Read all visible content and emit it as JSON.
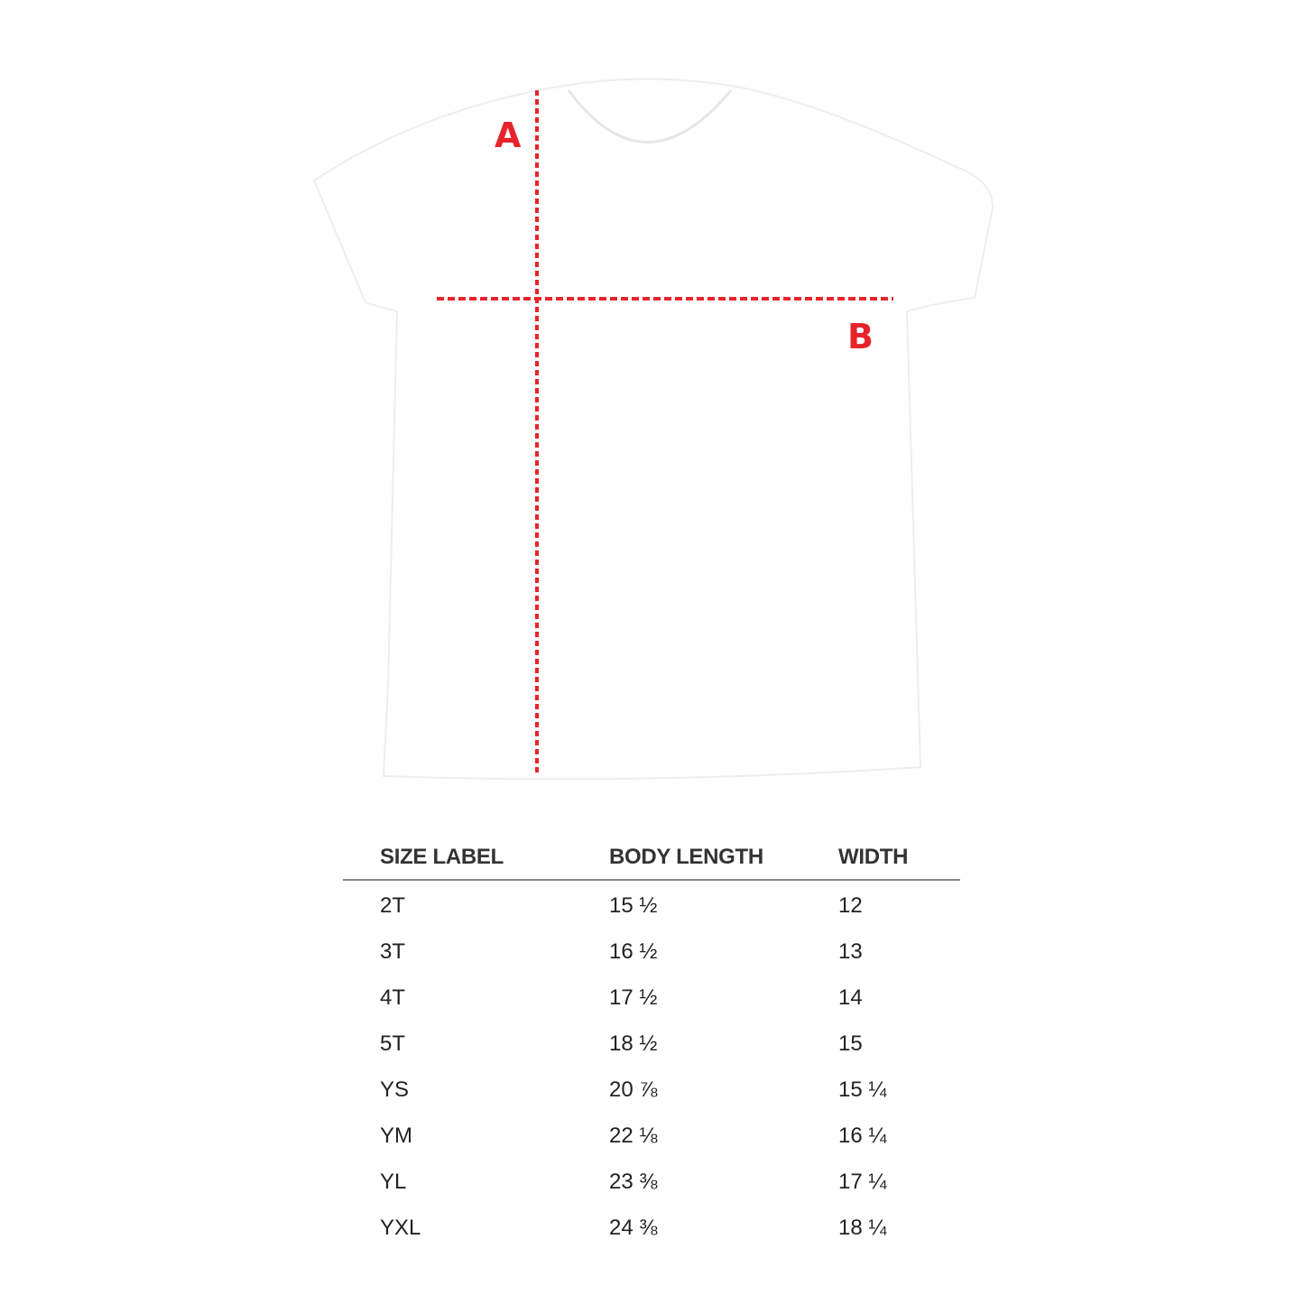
{
  "diagram": {
    "measure_labels": [
      "A",
      "B"
    ],
    "line_color": "#e8242b"
  },
  "table": {
    "headers": [
      "SIZE LABEL",
      "BODY LENGTH",
      "WIDTH"
    ],
    "rows": [
      [
        "2T",
        "15 ½",
        "12"
      ],
      [
        "3T",
        "16 ½",
        "13"
      ],
      [
        "4T",
        "17 ½",
        "14"
      ],
      [
        "5T",
        "18 ½",
        "15"
      ],
      [
        "YS",
        "20 ⅞",
        "15 ¼"
      ],
      [
        "YM",
        "22 ⅛",
        "16 ¼"
      ],
      [
        "YL",
        "23 ⅜",
        "17 ¼"
      ],
      [
        "YXL",
        "24 ⅜",
        "18 ¼"
      ]
    ]
  }
}
